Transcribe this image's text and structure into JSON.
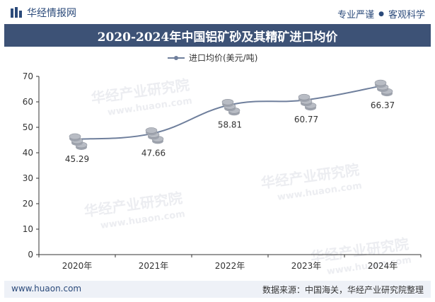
{
  "header": {
    "brand": "华经情报网",
    "tagline_left": "专业严谨",
    "tagline_dot": "●",
    "tagline_right": "客观科学"
  },
  "title": "2020-2024年中国铝矿砂及其精矿进口均价",
  "footer": {
    "website": "www.huaon.com",
    "source": "数据来源：中国海关，华经产业研究院整理"
  },
  "watermark": {
    "cn": "华经产业研究院",
    "url": "www.huaon.com"
  },
  "colors": {
    "title_bg": "#3d5276",
    "line": "#6f7f9c",
    "coin": "#b8bcc4"
  },
  "chart_data": {
    "type": "line",
    "title": "2020-2024年中国铝矿砂及其精矿进口均价",
    "categories": [
      "2020年",
      "2021年",
      "2022年",
      "2023年",
      "2024年"
    ],
    "series": [
      {
        "name": "进口均价(美元/吨)",
        "values": [
          45.29,
          47.66,
          58.81,
          60.77,
          66.37
        ]
      }
    ],
    "value_labels": [
      "45.29",
      "47.66",
      "58.81",
      "60.77",
      "66.37"
    ],
    "ylim": [
      0,
      70
    ],
    "yticks": [
      "0",
      "10",
      "20",
      "30",
      "40",
      "50",
      "60",
      "70"
    ],
    "xlabel": "",
    "ylabel": "",
    "legend": "top-center"
  }
}
